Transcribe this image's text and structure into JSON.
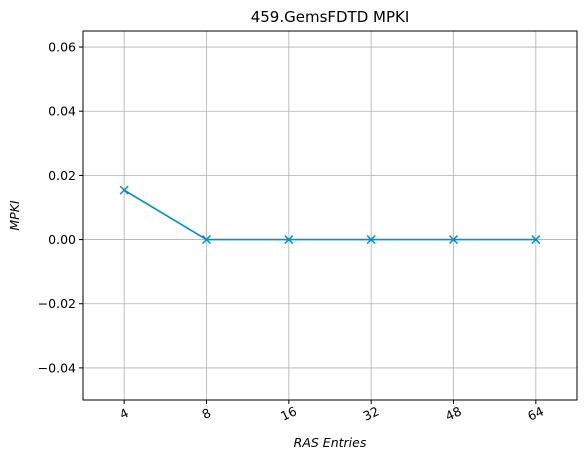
{
  "chart_data": {
    "type": "line",
    "title": "459.GemsFDTD MPKI",
    "xlabel": "RAS Entries",
    "ylabel": "MPKI",
    "categories": [
      "4",
      "8",
      "16",
      "32",
      "48",
      "64"
    ],
    "series": [
      {
        "name": "MPKI",
        "values": [
          0.0154,
          0.0,
          0.0,
          0.0,
          0.0,
          0.0
        ],
        "color": "#0a8fc9",
        "marker": "x"
      }
    ],
    "ylim": [
      -0.05,
      0.065
    ],
    "yticks": [
      -0.04,
      -0.02,
      0.0,
      0.02,
      0.04,
      0.06
    ],
    "ytick_labels": [
      "−0.04",
      "−0.02",
      "0.00",
      "0.02",
      "0.04",
      "0.06"
    ],
    "grid": true,
    "grid_color": "#b0b0b0",
    "xtick_rotation": 25
  }
}
